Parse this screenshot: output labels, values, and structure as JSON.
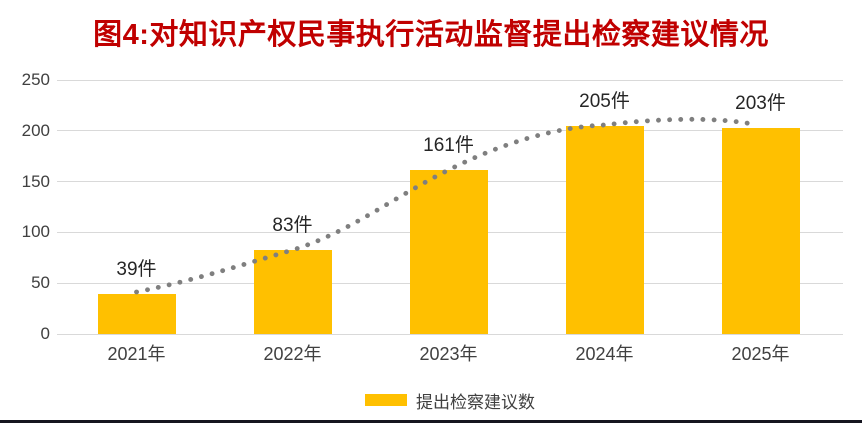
{
  "title": {
    "text": "图4:对知识产权民事执行活动监督提出检察建议情况",
    "color": "#C00000"
  },
  "legend": {
    "label": "提出检察建议数",
    "swatch_color": "#FFC000"
  },
  "chart_data": {
    "type": "bar",
    "title": "图4:对知识产权民事执行活动监督提出检察建议情况",
    "categories": [
      "2021年",
      "2022年",
      "2023年",
      "2024年",
      "2025年"
    ],
    "series": [
      {
        "name": "提出检察建议数",
        "values": [
          39,
          83,
          161,
          205,
          203
        ]
      }
    ],
    "values": [
      39,
      83,
      161,
      205,
      203
    ],
    "value_labels": [
      "39件",
      "83件",
      "161件",
      "205件",
      "203件"
    ],
    "xlabel": "",
    "ylabel": "",
    "ylim": [
      0,
      250
    ],
    "yticks": [
      0,
      50,
      100,
      150,
      200,
      250
    ],
    "grid": true,
    "legend_position": "bottom",
    "bar_color": "#FFC000",
    "gridline_color": "#d9d9d9",
    "axis_text_color": "#404040",
    "value_label_color": "#262626",
    "trendline": {
      "style": "dotted",
      "color": "#7F7F7F"
    }
  },
  "footer": {
    "border_color": "#15151f"
  }
}
